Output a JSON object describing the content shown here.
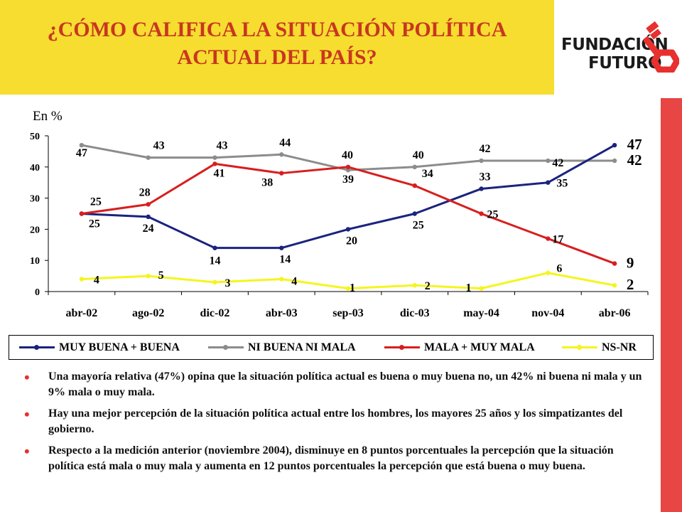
{
  "header": {
    "title_line1": "¿CÓMO CALIFICA LA SITUACIÓN POLÍTICA",
    "title_line2": "ACTUAL DEL PAÍS?"
  },
  "logo": {
    "line1": "FUNDACIÓN",
    "line2": "FUTURO",
    "icon": "key-icon",
    "color": "#e8302e"
  },
  "chart_data": {
    "type": "line",
    "unit_label": "En %",
    "categories": [
      "abr-02",
      "ago-02",
      "dic-02",
      "abr-03",
      "sep-03",
      "dic-03",
      "may-04",
      "nov-04",
      "abr-06"
    ],
    "ylim": [
      0,
      50
    ],
    "yticks": [
      0,
      10,
      20,
      30,
      40,
      50
    ],
    "grid": false,
    "legend_position": "bottom",
    "series": [
      {
        "name": "MUY BUENA + BUENA",
        "color": "#1a237e",
        "values": [
          25,
          24,
          14,
          14,
          20,
          25,
          33,
          35,
          47
        ]
      },
      {
        "name": "NI BUENA NI MALA",
        "color": "#8c8c8c",
        "values": [
          47,
          43,
          43,
          44,
          39,
          40,
          42,
          42,
          42
        ]
      },
      {
        "name": "MALA + MUY MALA",
        "color": "#d81e1e",
        "values": [
          25,
          28,
          41,
          38,
          40,
          34,
          25,
          17,
          9
        ]
      },
      {
        "name": "NS-NR",
        "color": "#f5f51e",
        "values": [
          4,
          5,
          3,
          4,
          1,
          2,
          1,
          6,
          2
        ]
      }
    ]
  },
  "bullets": [
    "Una mayoría relativa (47%) opina que la situación política actual es buena o muy buena no, un 42% ni buena ni mala y un 9% mala o muy mala.",
    "Hay una mejor percepción de la situación política actual entre los hombres, los mayores 25 años y los simpatizantes del gobierno.",
    "Respecto a la medición anterior (noviembre 2004), disminuye en 8 puntos porcentuales la percepción que la situación política está mala o muy mala y aumenta en 12 puntos porcentuales la percepción que está buena o muy buena."
  ],
  "bullet_symbol": "•"
}
